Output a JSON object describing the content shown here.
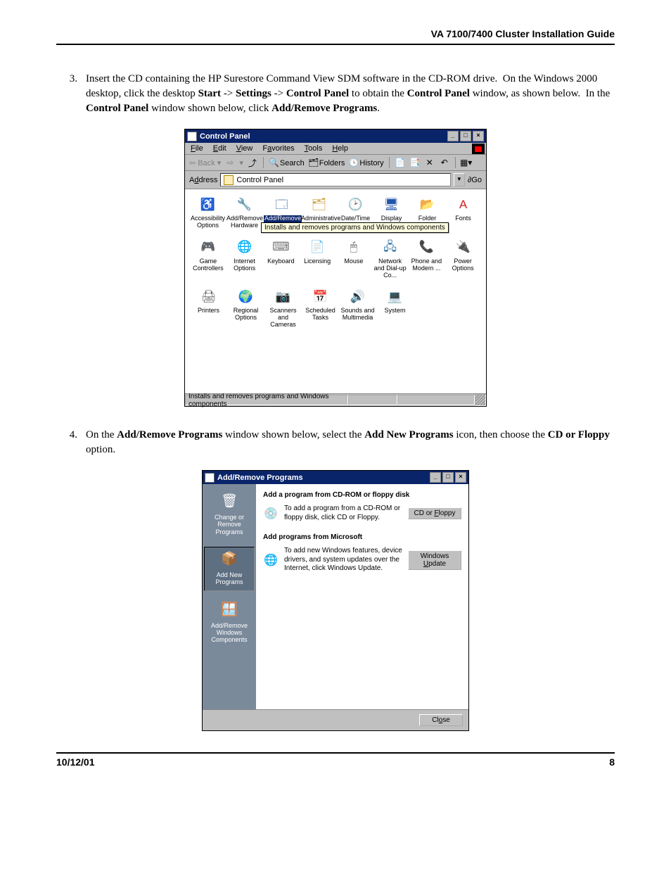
{
  "header": {
    "title": "VA 7100/7400 Cluster Installation Guide"
  },
  "step3": {
    "num": "3.",
    "text_plain": "Insert the CD containing the HP Surestore Command View SDM software in the CD-ROM drive.  On the Windows 2000 desktop, click the desktop Start -> Settings -> Control Panel to obtain the Control Panel window, as shown below.  In the Control Panel window shown below, click Add/Remove Programs."
  },
  "step4": {
    "num": "4.",
    "text_plain": "On the Add/Remove Programs window shown below, select the Add New Programs icon, then choose the CD or Floppy option."
  },
  "cp": {
    "title": "Control Panel",
    "menus": [
      "File",
      "Edit",
      "View",
      "Favorites",
      "Tools",
      "Help"
    ],
    "toolbar": {
      "back": "Back",
      "search": "Search",
      "folders": "Folders",
      "history": "History"
    },
    "address_label": "Address",
    "address_value": "Control Panel",
    "go": "Go",
    "tooltip": "Installs and removes programs and Windows components",
    "status": "Installs and removes programs and Windows components",
    "row1": [
      {
        "label": "Accessibility Options",
        "glyph": "♿",
        "c": "#0055cc"
      },
      {
        "label": "Add/Remove Hardware",
        "glyph": "🔧",
        "c": "#555"
      },
      {
        "label": "Add/Remove Progr...",
        "glyph": "🗔",
        "c": "#3a6ea5",
        "sel": true
      },
      {
        "label": "Administrative",
        "glyph": "🗂",
        "c": "#cc9933"
      },
      {
        "label": "Date/Time",
        "glyph": "🕑",
        "c": "#cc2222"
      },
      {
        "label": "Display",
        "glyph": "🖥",
        "c": "#2255aa"
      },
      {
        "label": "Folder Options",
        "glyph": "📂",
        "c": "#cc9933"
      },
      {
        "label": "Fonts",
        "glyph": "A",
        "c": "#cc2222"
      }
    ],
    "row2": [
      {
        "label": "Game Controllers",
        "glyph": "🎮",
        "c": "#555"
      },
      {
        "label": "Internet Options",
        "glyph": "🌐",
        "c": "#1177cc"
      },
      {
        "label": "Keyboard",
        "glyph": "⌨",
        "c": "#777"
      },
      {
        "label": "Licensing",
        "glyph": "📄",
        "c": "#3377aa"
      },
      {
        "label": "Mouse",
        "glyph": "🖱",
        "c": "#555"
      },
      {
        "label": "Network and Dial-up Co...",
        "glyph": "🖧",
        "c": "#3377aa"
      },
      {
        "label": "Phone and Modem ...",
        "glyph": "📞",
        "c": "#cc9933"
      },
      {
        "label": "Power Options",
        "glyph": "🔌",
        "c": "#228822"
      }
    ],
    "row3": [
      {
        "label": "Printers",
        "glyph": "🖨",
        "c": "#555"
      },
      {
        "label": "Regional Options",
        "glyph": "🌍",
        "c": "#1177cc"
      },
      {
        "label": "Scanners and Cameras",
        "glyph": "📷",
        "c": "#cc9933"
      },
      {
        "label": "Scheduled Tasks",
        "glyph": "📅",
        "c": "#cc9933"
      },
      {
        "label": "Sounds and Multimedia",
        "glyph": "🔊",
        "c": "#cc9933"
      },
      {
        "label": "System",
        "glyph": "💻",
        "c": "#3377aa"
      }
    ]
  },
  "arp": {
    "title": "Add/Remove Programs",
    "left": [
      {
        "label": "Change or Remove Programs",
        "glyph": "🗑"
      },
      {
        "label": "Add New Programs",
        "glyph": "📦",
        "sel": true
      },
      {
        "label": "Add/Remove Windows Components",
        "glyph": "🪟"
      }
    ],
    "sec1": {
      "hdr": "Add a program from CD-ROM or floppy disk",
      "text": "To add a program from a CD-ROM or floppy disk, click CD or Floppy.",
      "btn": "CD or Floppy"
    },
    "sec2": {
      "hdr": "Add programs from Microsoft",
      "text": "To add new Windows features, device drivers, and system updates over the Internet, click Windows Update.",
      "btn": "Windows Update"
    },
    "close": "Close"
  },
  "footer": {
    "date": "10/12/01",
    "page": "8"
  }
}
